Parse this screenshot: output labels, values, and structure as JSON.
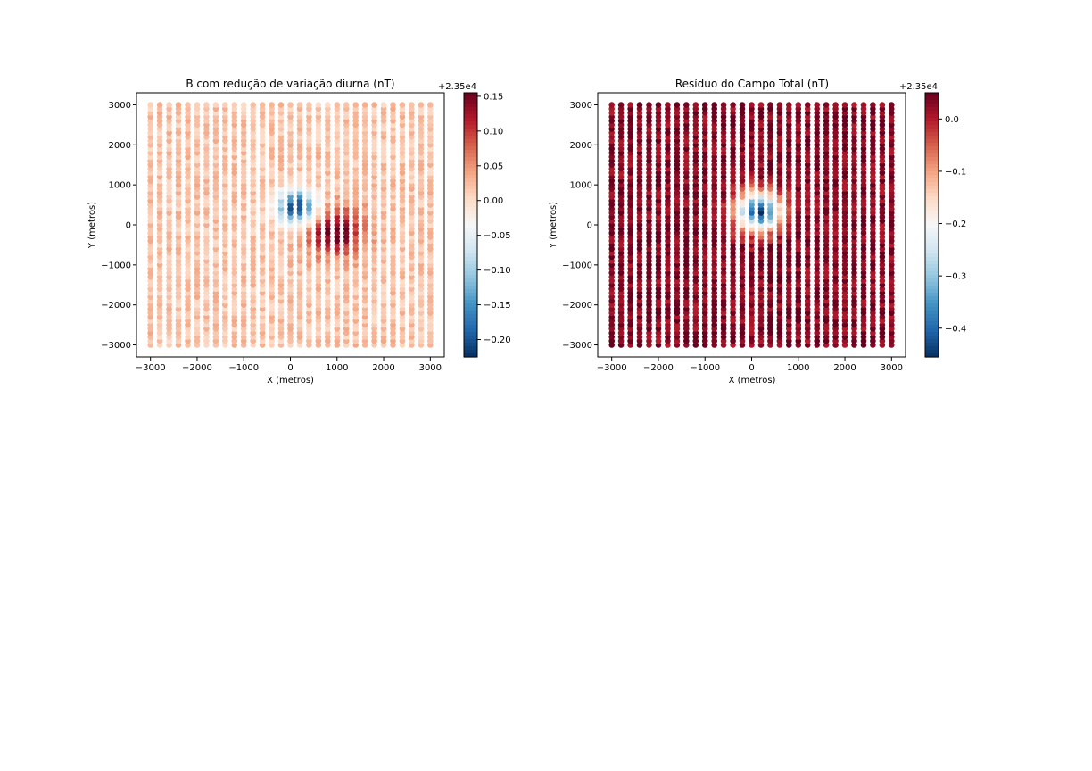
{
  "chart_data": [
    {
      "type": "scatter",
      "id": "left",
      "title": "B com redução de variação diurna (nT)",
      "xlabel": "X (metros)",
      "ylabel": "Y (metros)",
      "xlim": [
        -3300,
        3300
      ],
      "ylim": [
        -3300,
        3300
      ],
      "xticks": [
        -3000,
        -2000,
        -1000,
        0,
        1000,
        2000,
        3000
      ],
      "yticks": [
        -3000,
        -2000,
        -1000,
        0,
        1000,
        2000,
        3000
      ],
      "xtick_labels": [
        "−3000",
        "−2000",
        "−1000",
        "0",
        "1000",
        "2000",
        "3000"
      ],
      "ytick_labels": [
        "−3000",
        "−2000",
        "−1000",
        "0",
        "1000",
        "2000",
        "3000"
      ],
      "survey": {
        "x_start": -3000,
        "x_end": 3000,
        "x_step": 200,
        "y_start": -3000,
        "y_end": 3000,
        "y_step": 100
      },
      "anomaly": {
        "description": "dipole: negative lobe near (150, 450), positive lobe near (950, -150), weak positive background",
        "background": 0.02,
        "noise": 0.02,
        "lobes": [
          {
            "x": 150,
            "y": 450,
            "amplitude": -0.24,
            "sigma": 300
          },
          {
            "x": 950,
            "y": -150,
            "amplitude": 0.14,
            "sigma": 420
          }
        ]
      },
      "colorbar": {
        "vmin": -0.225,
        "vmax": 0.155,
        "ticks": [
          -0.2,
          -0.15,
          -0.1,
          -0.05,
          0.0,
          0.05,
          0.1,
          0.15
        ],
        "tick_labels": [
          "−0.20",
          "−0.15",
          "−0.10",
          "−0.05",
          "0.00",
          "0.05",
          "0.10",
          "0.15"
        ],
        "offset_label": "+2.35e4",
        "colormap": "RdBu_r"
      }
    },
    {
      "type": "scatter",
      "id": "right",
      "title": "Resíduo do Campo Total (nT)",
      "xlabel": "X (metros)",
      "ylabel": "Y (metros)",
      "xlim": [
        -3300,
        3300
      ],
      "ylim": [
        -3300,
        3300
      ],
      "xticks": [
        -3000,
        -2000,
        -1000,
        0,
        1000,
        2000,
        3000
      ],
      "yticks": [
        -3000,
        -2000,
        -1000,
        0,
        1000,
        2000,
        3000
      ],
      "xtick_labels": [
        "−3000",
        "−2000",
        "−1000",
        "0",
        "1000",
        "2000",
        "3000"
      ],
      "ytick_labels": [
        "−3000",
        "−2000",
        "−1000",
        "0",
        "1000",
        "2000",
        "3000"
      ],
      "survey": {
        "x_start": -3000,
        "x_end": 3000,
        "x_step": 200,
        "y_start": -3000,
        "y_end": 3000,
        "y_step": 100
      },
      "anomaly": {
        "description": "single negative anomaly centered near (150, 350) on a positive background",
        "background": 0.03,
        "noise": 0.035,
        "lobes": [
          {
            "x": 150,
            "y": 350,
            "amplitude": -0.48,
            "sigma": 330
          }
        ]
      },
      "colorbar": {
        "vmin": -0.455,
        "vmax": 0.05,
        "ticks": [
          -0.4,
          -0.3,
          -0.2,
          -0.1,
          0.0
        ],
        "tick_labels": [
          "−0.4",
          "−0.3",
          "−0.2",
          "−0.1",
          "0.0"
        ],
        "offset_label": "+2.35e4",
        "colormap": "RdBu_r"
      }
    }
  ]
}
